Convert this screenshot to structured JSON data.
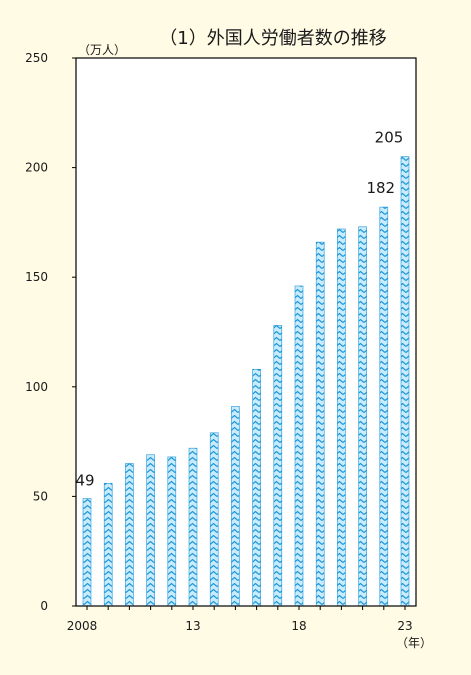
{
  "chart_data": {
    "type": "bar",
    "title": "（1）外国人労働者数の推移",
    "ylabel": "（万人）",
    "xlabel": "（年）",
    "categories": [
      "2008",
      "",
      "",
      "",
      "",
      "13",
      "",
      "",
      "",
      "",
      "18",
      "",
      "",
      "",
      "",
      "23"
    ],
    "values": [
      49,
      56,
      65,
      69,
      68,
      72,
      79,
      91,
      108,
      128,
      146,
      166,
      172,
      173,
      182,
      205
    ],
    "ylim": [
      0,
      250
    ],
    "yticks": [
      0,
      50,
      100,
      150,
      200,
      250
    ],
    "grid": false,
    "data_labels": [
      {
        "index": 0,
        "text": "49"
      },
      {
        "index": 14,
        "text": "182"
      },
      {
        "index": 15,
        "text": "205"
      }
    ],
    "colors": {
      "background": "#fffbe5",
      "plot_background": "#ffffff",
      "bar_fill": "#c8ecfc",
      "bar_pattern": "#1e95d8"
    }
  }
}
